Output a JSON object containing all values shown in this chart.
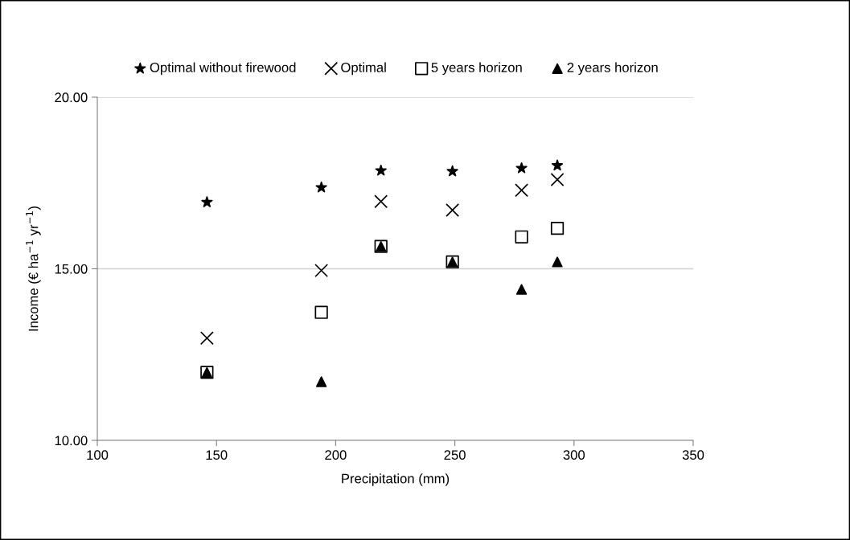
{
  "chart_data": {
    "type": "scatter",
    "xlabel": "Precipitation (mm)",
    "ylabel": "Income (€ ha$^{−1}$ yr$^{−1}$)",
    "x": [
      146,
      194,
      219,
      249,
      278,
      293
    ],
    "series": [
      {
        "name": "Optimal without firewood",
        "color": "#000000",
        "marker": "star",
        "values": [
          16.94,
          17.37,
          17.86,
          17.84,
          17.93,
          18.01
        ]
      },
      {
        "name": "Optimal",
        "color": "#000000",
        "marker": "cross",
        "values": [
          12.98,
          14.95,
          16.96,
          16.71,
          17.29,
          17.6
        ]
      },
      {
        "name": "5 years horizon",
        "color": "#000000",
        "marker": "square",
        "values": [
          11.98,
          13.73,
          15.65,
          15.2,
          15.93,
          16.18
        ]
      },
      {
        "name": "2 years horizon",
        "color": "#000000",
        "marker": "triangle",
        "values": [
          11.98,
          11.71,
          15.65,
          15.2,
          14.4,
          15.2
        ]
      }
    ],
    "xlim": [
      100,
      350
    ],
    "xticks": [
      100,
      150,
      200,
      250,
      300,
      350
    ],
    "ylim": [
      10,
      20
    ],
    "yticks": [
      {
        "value": 10,
        "label": "10.00"
      },
      {
        "value": 15,
        "label": "15.00"
      },
      {
        "value": 20,
        "label": "20.00"
      }
    ],
    "grid": "y",
    "legend": "top"
  }
}
